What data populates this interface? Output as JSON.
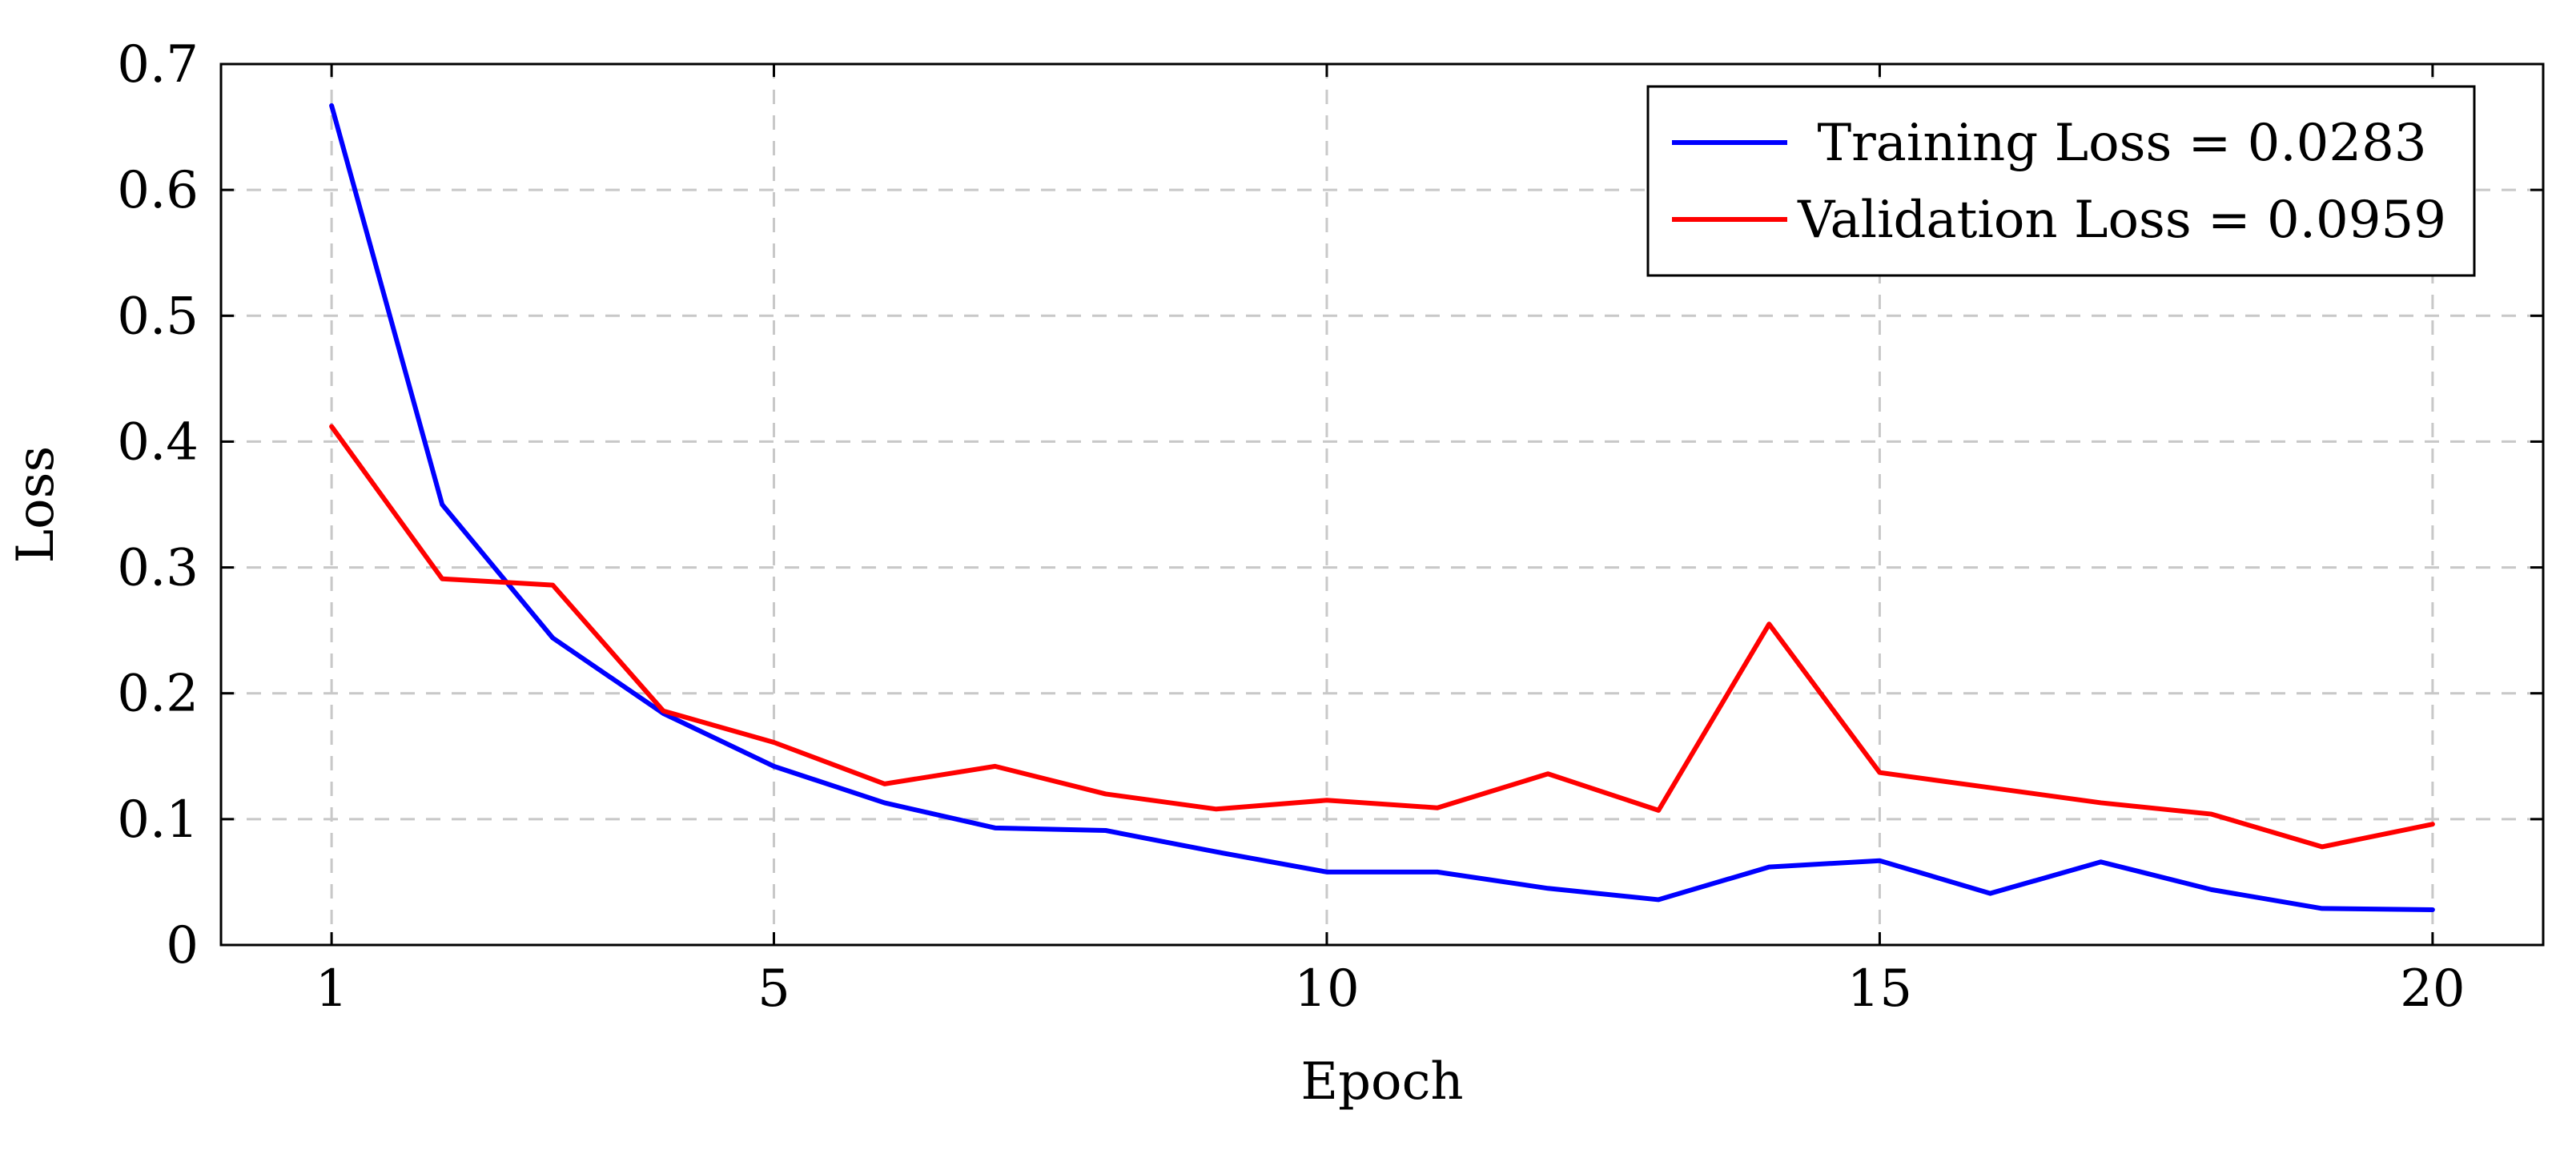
{
  "chart_data": {
    "type": "line",
    "title": "",
    "xlabel": "Epoch",
    "ylabel": "Loss",
    "xlim": [
      0,
      21
    ],
    "ylim": [
      0,
      0.7
    ],
    "xticks": [
      1,
      5,
      10,
      15,
      20
    ],
    "xtick_labels": [
      "1",
      "5",
      "10",
      "15",
      "20"
    ],
    "yticks": [
      0,
      0.1,
      0.2,
      0.3,
      0.4,
      0.5,
      0.6,
      0.7
    ],
    "ytick_labels": [
      "0",
      "0.1",
      "0.2",
      "0.3",
      "0.4",
      "0.5",
      "0.6",
      "0.7"
    ],
    "grid": true,
    "legend_position": "top-right",
    "x": [
      1,
      2,
      3,
      4,
      5,
      6,
      7,
      8,
      9,
      10,
      11,
      12,
      13,
      14,
      15,
      16,
      17,
      18,
      19,
      20
    ],
    "series": [
      {
        "name": "Training Loss = 0.0283",
        "color": "#0000ff",
        "values": [
          0.667,
          0.35,
          0.244,
          0.184,
          0.142,
          0.113,
          0.093,
          0.091,
          0.074,
          0.058,
          0.058,
          0.045,
          0.036,
          0.062,
          0.067,
          0.041,
          0.066,
          0.044,
          0.029,
          0.028
        ]
      },
      {
        "name": "Validation Loss = 0.0959",
        "color": "#ff0000",
        "values": [
          0.412,
          0.291,
          0.286,
          0.186,
          0.161,
          0.128,
          0.142,
          0.12,
          0.108,
          0.115,
          0.109,
          0.136,
          0.107,
          0.255,
          0.137,
          0.125,
          0.113,
          0.104,
          0.078,
          0.096
        ]
      }
    ]
  }
}
